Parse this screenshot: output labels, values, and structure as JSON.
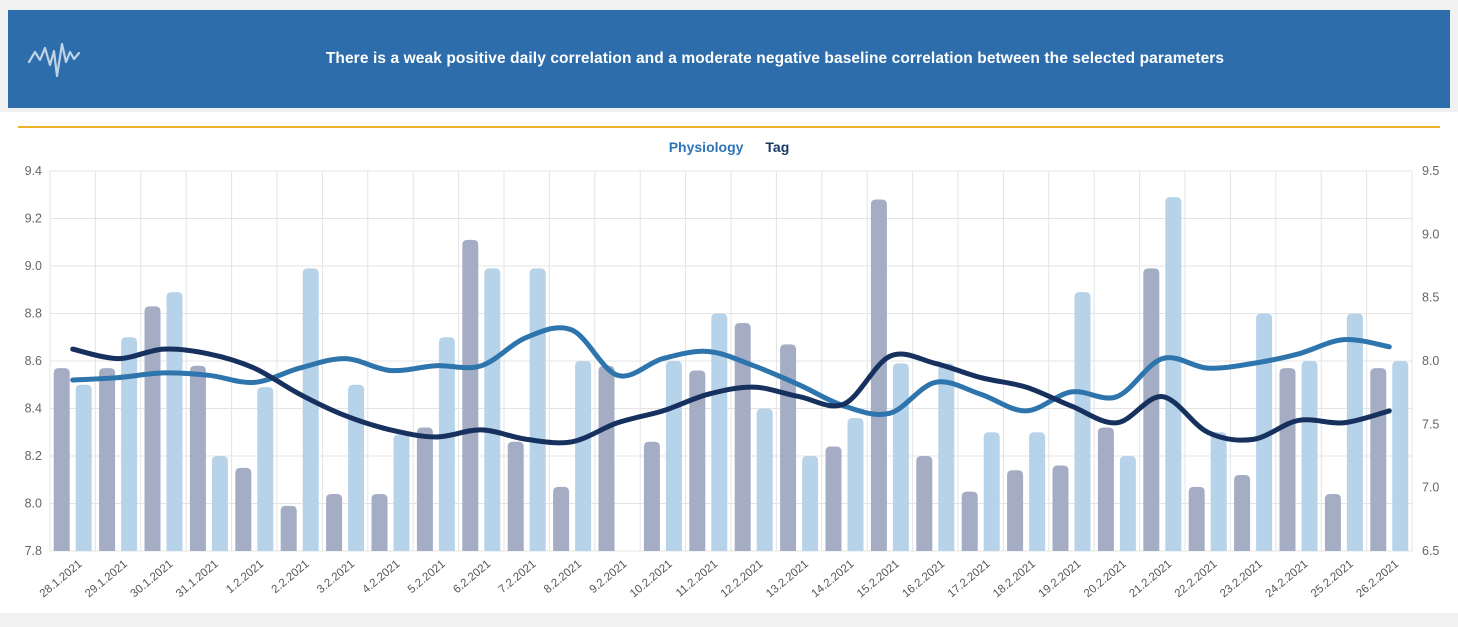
{
  "header": {
    "title": "There is a weak positive daily correlation and a moderate negative baseline correlation between the selected parameters",
    "background_color": "#2d6dab",
    "logo": "ecg-waveform-icon"
  },
  "divider_color": "#ecb22a",
  "legend": {
    "items": [
      {
        "label": "Physiology",
        "color": "#2e75b6"
      },
      {
        "label": "Tag",
        "color": "#1c3667"
      }
    ],
    "position": "top-center"
  },
  "chart_data": {
    "type": "bar+line",
    "grid": true,
    "categories": [
      "28.1.2021",
      "29.1.2021",
      "30.1.2021",
      "31.1.2021",
      "1.2.2021",
      "2.2.2021",
      "3.2.2021",
      "4.2.2021",
      "5.2.2021",
      "6.2.2021",
      "7.2.2021",
      "8.2.2021",
      "9.2.2021",
      "10.2.2021",
      "11.2.2021",
      "12.2.2021",
      "13.2.2021",
      "14.2.2021",
      "15.2.2021",
      "16.2.2021",
      "17.2.2021",
      "18.2.2021",
      "19.2.2021",
      "20.2.2021",
      "21.2.2021",
      "22.2.2021",
      "23.2.2021",
      "24.2.2021",
      "25.2.2021",
      "26.2.2021"
    ],
    "left_axis": {
      "min": 7.8,
      "max": 9.4,
      "tick_labels": [
        "9.4",
        "9.2",
        "9.0",
        "8.8",
        "8.6",
        "8.4",
        "8.2",
        "8.0",
        "7.8"
      ]
    },
    "right_axis": {
      "min": 6.5,
      "max": 9.5,
      "tick_labels": [
        "9.5",
        "9.0",
        "8.5",
        "8.0",
        "7.5",
        "7.0",
        "6.5"
      ]
    },
    "values_scale": "left",
    "series": [
      {
        "name": "Tag daily",
        "type": "bar",
        "color": "#a5adc4",
        "values": [
          8.57,
          8.57,
          8.83,
          8.58,
          8.15,
          7.99,
          8.04,
          8.04,
          8.32,
          9.11,
          8.26,
          8.07,
          8.58,
          8.26,
          8.56,
          8.76,
          8.67,
          8.24,
          9.28,
          8.2,
          8.05,
          8.14,
          8.16,
          8.32,
          8.99,
          8.07,
          8.12,
          8.57,
          8.04,
          8.57
        ]
      },
      {
        "name": "Physiology daily",
        "type": "bar",
        "color": "#b7d3ea",
        "values": [
          8.5,
          8.7,
          8.89,
          8.2,
          8.49,
          8.99,
          8.5,
          8.29,
          8.7,
          8.99,
          8.99,
          8.6,
          null,
          8.6,
          8.8,
          8.4,
          8.2,
          8.36,
          8.59,
          8.59,
          8.3,
          8.3,
          8.89,
          8.2,
          9.29,
          8.3,
          8.8,
          8.6,
          8.8,
          8.6
        ]
      },
      {
        "name": "Physiology baseline",
        "type": "line",
        "color": "#2e74ad",
        "values": [
          8.52,
          8.53,
          8.55,
          8.54,
          8.51,
          8.57,
          8.61,
          8.56,
          8.58,
          8.58,
          8.7,
          8.73,
          8.54,
          8.61,
          8.64,
          8.58,
          8.5,
          8.41,
          8.38,
          8.51,
          8.46,
          8.39,
          8.47,
          8.45,
          8.61,
          8.57,
          8.59,
          8.63,
          8.69,
          8.66
        ]
      },
      {
        "name": "Tag baseline",
        "type": "line",
        "color": "#17315f",
        "values": [
          8.65,
          8.61,
          8.65,
          8.63,
          8.57,
          8.46,
          8.37,
          8.31,
          8.28,
          8.31,
          8.27,
          8.26,
          8.34,
          8.39,
          8.46,
          8.49,
          8.45,
          8.42,
          8.62,
          8.59,
          8.53,
          8.49,
          8.41,
          8.34,
          8.45,
          8.3,
          8.27,
          8.35,
          8.34,
          8.39
        ]
      }
    ],
    "style": {
      "grid_color": "#e4e4e4",
      "axis_text_color": "#666666",
      "xlabel_text_color": "#555555"
    }
  }
}
